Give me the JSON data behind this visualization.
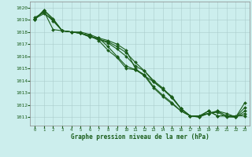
{
  "title": "Graphe pression niveau de la mer (hPa)",
  "xlim": [
    -0.5,
    23.5
  ],
  "ylim": [
    1010.3,
    1020.5
  ],
  "yticks": [
    1011,
    1012,
    1013,
    1014,
    1015,
    1016,
    1017,
    1018,
    1019,
    1020
  ],
  "xticks": [
    0,
    1,
    2,
    3,
    4,
    5,
    6,
    7,
    8,
    9,
    10,
    11,
    12,
    13,
    14,
    15,
    16,
    17,
    18,
    19,
    20,
    21,
    22,
    23
  ],
  "background_color": "#cceeed",
  "grid_color": "#aacccc",
  "line_color": "#1a5c1a",
  "markersize": 2.0,
  "linewidth": 0.8,
  "series": [
    [
      1019.0,
      1019.8,
      1019.0,
      1018.1,
      1018.0,
      1017.9,
      1017.7,
      1017.3,
      1016.5,
      1015.9,
      1015.0,
      1014.9,
      1014.4,
      1013.4,
      1012.7,
      1012.1,
      1011.5,
      1011.1,
      1011.1,
      1011.3,
      1011.4,
      1011.0,
      1011.0,
      1011.3
    ],
    [
      1019.1,
      1019.7,
      1018.2,
      1018.1,
      1018.0,
      1017.9,
      1017.6,
      1017.5,
      1016.8,
      1016.0,
      1015.2,
      1014.9,
      1014.5,
      1013.5,
      1012.8,
      1012.2,
      1011.5,
      1011.1,
      1011.1,
      1011.3,
      1011.5,
      1011.1,
      1011.0,
      1011.5
    ],
    [
      1019.2,
      1019.6,
      1018.9,
      1018.1,
      1018.0,
      1017.9,
      1017.6,
      1017.4,
      1017.1,
      1016.6,
      1016.0,
      1015.2,
      1014.8,
      1013.9,
      1013.3,
      1012.6,
      1011.7,
      1011.1,
      1011.0,
      1011.3,
      1011.5,
      1011.3,
      1011.0,
      1011.8
    ],
    [
      1019.1,
      1019.5,
      1019.0,
      1018.1,
      1018.0,
      1017.9,
      1017.7,
      1017.4,
      1017.2,
      1016.8,
      1016.3,
      1015.5,
      1014.8,
      1014.0,
      1013.4,
      1012.6,
      1011.7,
      1011.1,
      1011.0,
      1011.5,
      1011.1,
      1011.1,
      1011.0,
      1012.2
    ],
    [
      1019.0,
      1019.8,
      1019.1,
      1018.1,
      1018.0,
      1018.0,
      1017.8,
      1017.5,
      1017.3,
      1017.0,
      1016.5,
      1015.0,
      1014.4,
      1013.9,
      1013.3,
      1012.7,
      1011.7,
      1011.1,
      1011.1,
      1011.5,
      1011.1,
      1011.1,
      1011.1,
      1011.1
    ]
  ]
}
